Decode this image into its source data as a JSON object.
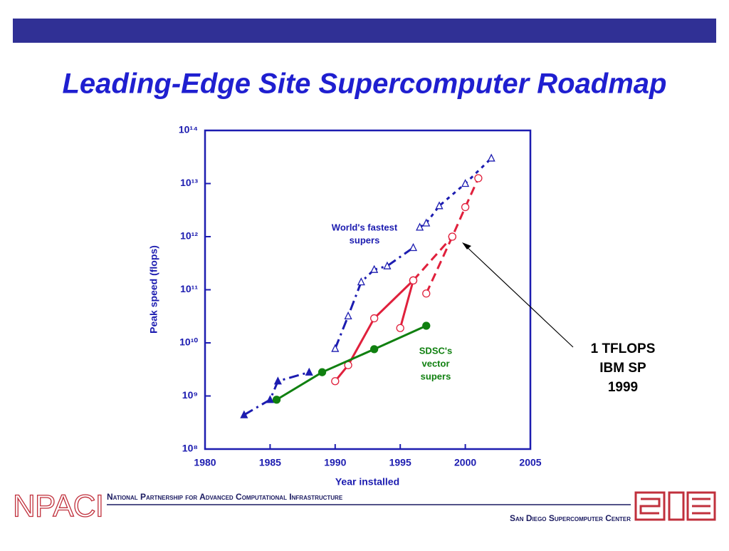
{
  "header": {
    "title": "Leading-Edge Site Supercomputer Roadmap"
  },
  "chart_data": {
    "type": "line",
    "xlabel": "Year installed",
    "ylabel": "Peak speed (flops)",
    "log_y": true,
    "xlim": [
      1980,
      2005
    ],
    "xticks": [
      1980,
      1985,
      1990,
      1995,
      2000,
      2005
    ],
    "ylim": [
      100000000,
      100000000000000
    ],
    "yticks": [
      {
        "value": 100000000,
        "label": "10⁸"
      },
      {
        "value": 1000000000,
        "label": "10⁹"
      },
      {
        "value": 10000000000,
        "label": "10¹⁰"
      },
      {
        "value": 100000000000,
        "label": "10¹¹"
      },
      {
        "value": 1000000000000,
        "label": "10¹²"
      },
      {
        "value": 10000000000000,
        "label": "10¹³"
      },
      {
        "value": 100000000000000,
        "label": "10¹⁴"
      }
    ],
    "series": [
      {
        "color": "#1c1cb0",
        "marker": "triangle",
        "marker_fill": true,
        "dash": "dashdot",
        "x": [
          1983,
          1985,
          1985.6,
          1988
        ],
        "values": [
          440000000,
          850000000,
          1900000000,
          2800000000
        ]
      },
      {
        "color": "#1c1cb0",
        "marker": "triangle",
        "marker_fill": false,
        "dash": "dashdot",
        "x": [
          1990,
          1991,
          1992,
          1993,
          1994,
          1996
        ],
        "values": [
          7800000000,
          32000000000,
          140000000000,
          240000000000,
          280000000000,
          620000000000
        ]
      },
      {
        "color": "#1c1cb0",
        "marker": "triangle",
        "marker_fill": false,
        "dash": "dotted",
        "x": [
          1996.5,
          1997,
          1998,
          2000,
          2002
        ],
        "values": [
          1500000000000,
          1800000000000,
          3800000000000,
          10000000000000,
          30000000000000
        ]
      },
      {
        "color": "#e0203c",
        "marker": "circle",
        "marker_fill": false,
        "dash": "solid",
        "x": [
          1990,
          1991,
          1993,
          1996
        ],
        "values": [
          1900000000,
          3800000000,
          29000000000,
          150000000000
        ]
      },
      {
        "color": "#e0203c",
        "marker": "circle",
        "marker_fill": false,
        "dash": "solid",
        "x": [
          1995,
          1996
        ],
        "values": [
          19000000000,
          150000000000
        ]
      },
      {
        "color": "#e0203c",
        "marker": "circle",
        "marker_fill": false,
        "dash": "dashed",
        "x": [
          1996,
          1999
        ],
        "values": [
          150000000000,
          1000000000000
        ]
      },
      {
        "color": "#e0203c",
        "marker": "circle",
        "marker_fill": false,
        "dash": "dashed",
        "x": [
          1997,
          1999,
          2000,
          2001
        ],
        "values": [
          85000000000,
          1000000000000,
          3600000000000,
          12600000000000
        ]
      },
      {
        "color": "#108010",
        "marker": "circle",
        "marker_fill": true,
        "dash": "solid",
        "x": [
          1985.5,
          1989,
          1993,
          1997
        ],
        "values": [
          850000000,
          2800000000,
          7600000000,
          21000000000
        ]
      }
    ],
    "annotations": [
      {
        "lines": [
          "World's fastest",
          "supers"
        ],
        "color": "#1c1cb0"
      },
      {
        "lines": [
          "SDSC's",
          "vector",
          "supers"
        ],
        "color": "#108010"
      },
      {
        "lines": [
          "1 TFLOPS",
          "IBM SP",
          "1999"
        ],
        "color": "#000000"
      }
    ]
  },
  "footer": {
    "logo": "NPACI",
    "partnership": "National Partnership for Advanced Computational Infrastructure",
    "center": "San Diego Supercomputer Center"
  }
}
